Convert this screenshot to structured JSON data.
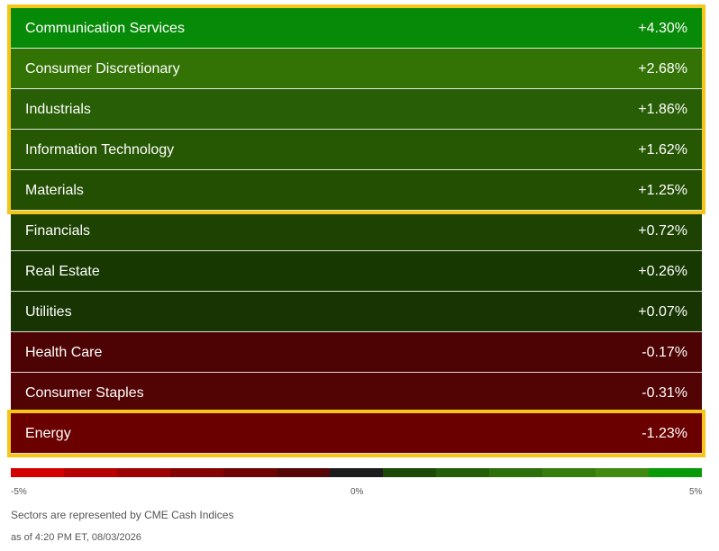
{
  "chart_data": {
    "type": "heatmap",
    "sectors": [
      {
        "name": "Communication Services",
        "label": "+4.30%",
        "value": 4.3,
        "color": "#078a07",
        "highlighted": true
      },
      {
        "name": "Consumer Discretionary",
        "label": "+2.68%",
        "value": 2.68,
        "color": "#337306",
        "highlighted": true
      },
      {
        "name": "Industrials",
        "label": "+1.86%",
        "value": 1.86,
        "color": "#285e05",
        "highlighted": true
      },
      {
        "name": "Information Technology",
        "label": "+1.62%",
        "value": 1.62,
        "color": "#265703",
        "highlighted": true
      },
      {
        "name": "Materials",
        "label": "+1.25%",
        "value": 1.25,
        "color": "#234f03",
        "highlighted": true
      },
      {
        "name": "Financials",
        "label": "+0.72%",
        "value": 0.72,
        "color": "#1d4202",
        "highlighted": false
      },
      {
        "name": "Real Estate",
        "label": "+0.26%",
        "value": 0.26,
        "color": "#183802",
        "highlighted": false
      },
      {
        "name": "Utilities",
        "label": "+0.07%",
        "value": 0.07,
        "color": "#173402",
        "highlighted": false
      },
      {
        "name": "Health Care",
        "label": "-0.17%",
        "value": -0.17,
        "color": "#4d0303",
        "highlighted": false
      },
      {
        "name": "Consumer Staples",
        "label": "-0.31%",
        "value": -0.31,
        "color": "#520303",
        "highlighted": false
      },
      {
        "name": "Energy",
        "label": "-1.23%",
        "value": -1.23,
        "color": "#6b0000",
        "highlighted": true
      }
    ],
    "scale": {
      "min_label": "-5%",
      "mid_label": "0%",
      "max_label": "5%",
      "range": [
        -5,
        5
      ],
      "colors": [
        "#d20000",
        "#b80000",
        "#9e0303",
        "#840404",
        "#6e0404",
        "#560606",
        "#1c1c1c",
        "#1a4a06",
        "#245e08",
        "#2d6f0a",
        "#357d0c",
        "#3f8a0f",
        "#089a08"
      ]
    }
  },
  "notes": {
    "source": "Sectors are represented by CME Cash Indices",
    "timestamp": "as of 4:20 PM ET, 08/03/2026"
  },
  "colors": {
    "highlight": "#f5c518"
  }
}
